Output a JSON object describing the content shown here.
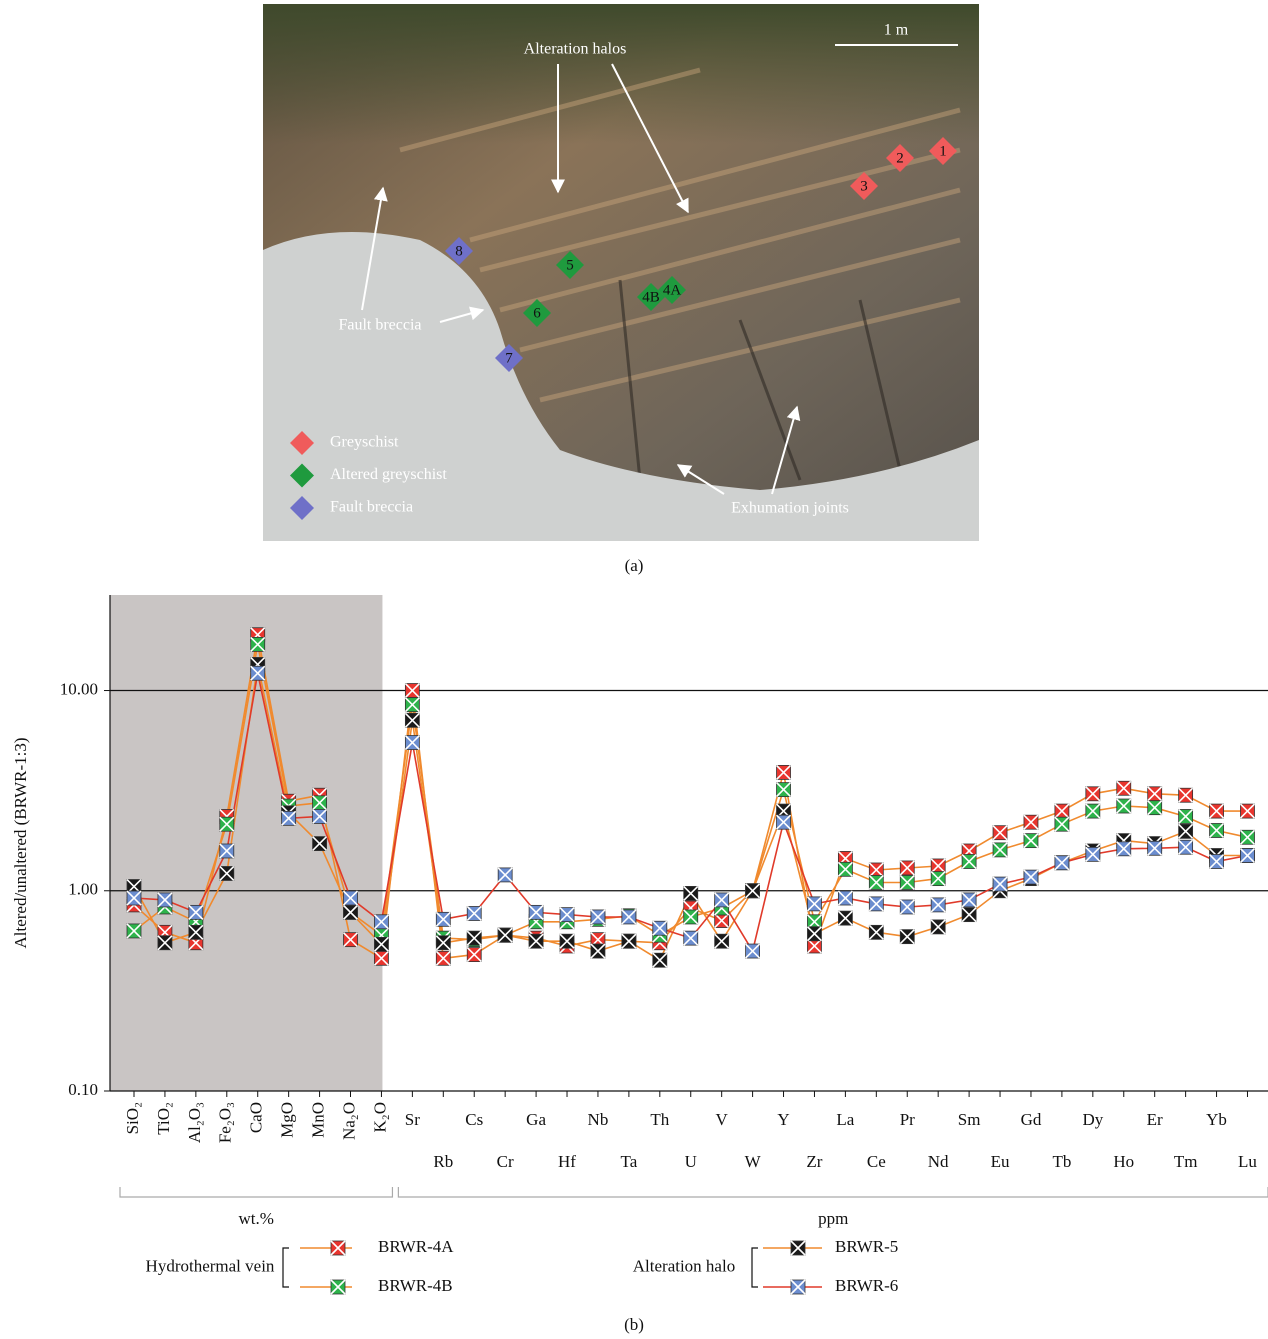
{
  "figure_a": {
    "label": "(a)",
    "scale_bar": "1 m",
    "annotations": [
      "Alteration halos",
      "Fault breccia",
      "Exhumation joints"
    ],
    "legend": [
      {
        "label": "Greyschist",
        "color": "#f05b5b",
        "samples": [
          "1",
          "2",
          "3"
        ]
      },
      {
        "label": "Altered greyschist",
        "color": "#1f9a3e",
        "samples": [
          "5",
          "4B",
          "4A",
          "6"
        ]
      },
      {
        "label": "Fault breccia",
        "color": "#6f70c8",
        "samples": [
          "8",
          "7"
        ]
      }
    ]
  },
  "chart_data": {
    "type": "line",
    "label": "(b)",
    "y_label": "Altered/unaltered (BRWR-1:3)",
    "log_y": true,
    "grid": true,
    "ylim": [
      0.1,
      30
    ],
    "yticks": [
      {
        "value": 0.1,
        "label": "0.10"
      },
      {
        "value": 1,
        "label": "1.00"
      },
      {
        "value": 10,
        "label": "10.00"
      }
    ],
    "categories": [
      "SiO₂",
      "TiO₂",
      "Al₂O₃",
      "Fe₂O₃",
      "CaO",
      "MgO",
      "MnO",
      "Na₂O",
      "K₂O",
      "Sr",
      "Rb",
      "Cs",
      "Cr",
      "Ga",
      "Hf",
      "Nb",
      "Ta",
      "Th",
      "U",
      "V",
      "W",
      "Y",
      "Zr",
      "La",
      "Ce",
      "Pr",
      "Nd",
      "Sm",
      "Eu",
      "Gd",
      "Tb",
      "Dy",
      "Ho",
      "Er",
      "Tm",
      "Yb",
      "Lu"
    ],
    "groups": [
      {
        "label": "wt.%",
        "first": "SiO₂",
        "last": "K₂O",
        "shaded": true
      },
      {
        "label": "ppm",
        "first": "Sr",
        "last": "Lu",
        "shaded": false
      }
    ],
    "series": [
      {
        "name": "BRWR-4A",
        "group": "Hydrothermal vein",
        "color": "#e8352e",
        "line_color": "#f08a2e",
        "values": [
          0.85,
          0.62,
          0.55,
          2.35,
          19,
          2.8,
          3.0,
          0.57,
          0.46,
          10.0,
          0.46,
          0.48,
          0.6,
          0.58,
          0.53,
          0.57,
          0.56,
          0.55,
          0.82,
          0.71,
          1.0,
          3.9,
          0.53,
          1.45,
          1.27,
          1.3,
          1.33,
          1.58,
          1.95,
          2.2,
          2.5,
          3.05,
          3.25,
          3.05,
          3.0,
          2.5,
          2.5
        ]
      },
      {
        "name": "BRWR-4B",
        "group": "Hydrothermal vein",
        "color": "#2db34b",
        "line_color": "#f08a2e",
        "values": [
          0.63,
          0.83,
          0.7,
          2.15,
          17,
          2.65,
          2.75,
          0.78,
          0.6,
          8.5,
          0.58,
          0.57,
          0.6,
          0.7,
          0.7,
          0.72,
          0.75,
          0.6,
          0.74,
          0.82,
          1.0,
          3.2,
          0.7,
          1.28,
          1.1,
          1.1,
          1.15,
          1.4,
          1.6,
          1.78,
          2.15,
          2.5,
          2.65,
          2.6,
          2.35,
          2.0,
          1.85
        ]
      },
      {
        "name": "BRWR-5",
        "group": "Alteration halo",
        "color": "#1a1a1a",
        "line_color": "#f08a2e",
        "values": [
          1.05,
          0.55,
          0.62,
          1.22,
          13.5,
          2.45,
          1.72,
          0.78,
          0.54,
          7.1,
          0.55,
          0.58,
          0.6,
          0.56,
          0.56,
          0.5,
          0.56,
          0.45,
          0.97,
          0.56,
          1.0,
          2.5,
          0.61,
          0.73,
          0.62,
          0.59,
          0.66,
          0.76,
          1.0,
          1.15,
          1.38,
          1.58,
          1.78,
          1.72,
          1.98,
          1.5,
          1.5
        ]
      },
      {
        "name": "BRWR-6",
        "group": "Alteration halo",
        "color": "#6b8dcf",
        "line_color": "#e03a2a",
        "values": [
          0.92,
          0.9,
          0.78,
          1.58,
          12.2,
          2.3,
          2.35,
          0.92,
          0.7,
          5.5,
          0.72,
          0.77,
          1.2,
          0.78,
          0.76,
          0.74,
          0.74,
          0.65,
          0.58,
          0.9,
          0.5,
          2.2,
          0.86,
          0.92,
          0.86,
          0.83,
          0.85,
          0.9,
          1.08,
          1.17,
          1.38,
          1.52,
          1.62,
          1.63,
          1.65,
          1.4,
          1.5
        ]
      }
    ]
  }
}
